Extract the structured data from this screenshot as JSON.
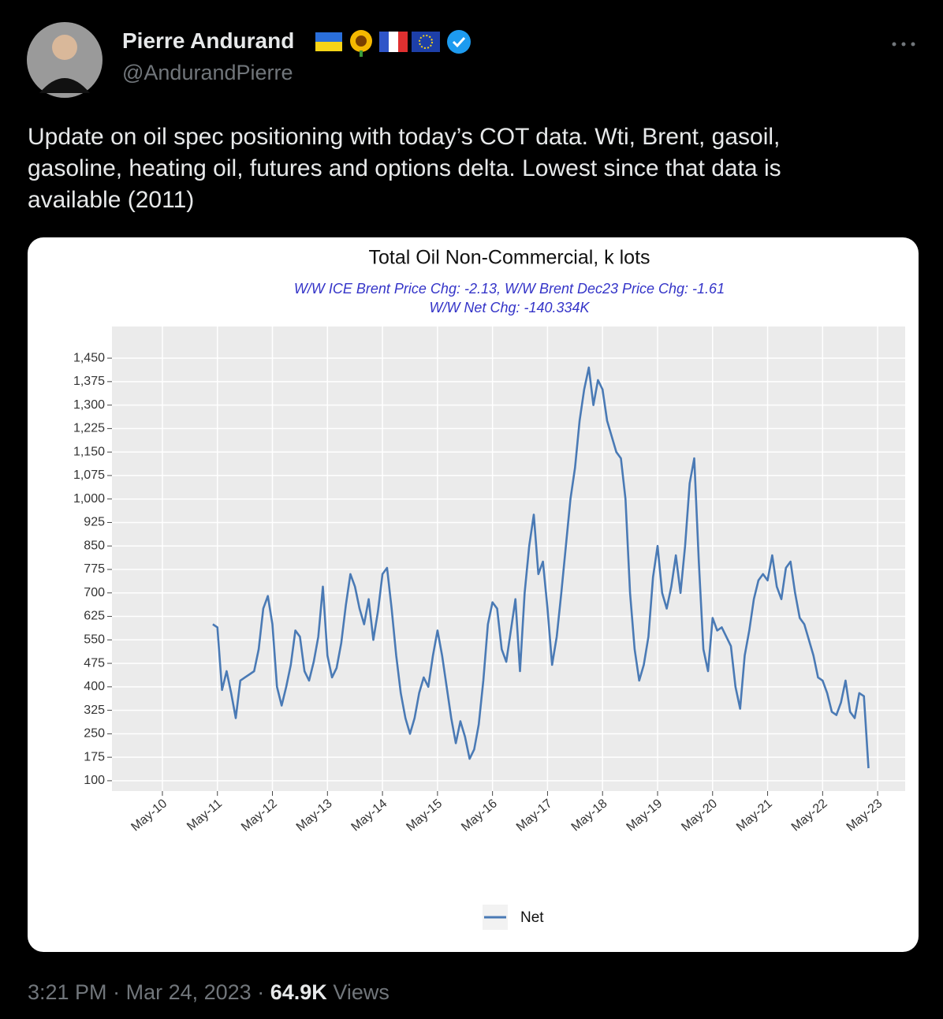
{
  "tweet": {
    "name": "Pierre Andurand",
    "handle": "@AndurandPierre",
    "text_lines": [
      "Update on oil spec positioning with today’s COT data. Wti, Brent, gasoil,",
      "gasoline, heating oil, futures and options delta. Lowest since that data is",
      "available (2011)"
    ],
    "time": "3:21 PM",
    "separator": "·",
    "date": "Mar 24, 2023",
    "views": "64.9K",
    "views_label": "Views"
  },
  "chart_data": {
    "type": "line",
    "title": "Total Oil Non-Commercial, k lots",
    "subtitle": [
      "W/W ICE Brent Price Chg: -2.13, W/W Brent Dec23 Price Chg: -1.61",
      "W/W Net Chg: -140.334K"
    ],
    "x": [
      "2011-04",
      "2011-05",
      "2011-06",
      "2011-07",
      "2011-08",
      "2011-09",
      "2011-10",
      "2011-11",
      "2011-12",
      "2012-01",
      "2012-02",
      "2012-03",
      "2012-04",
      "2012-05",
      "2012-06",
      "2012-07",
      "2012-08",
      "2012-09",
      "2012-10",
      "2012-11",
      "2012-12",
      "2013-01",
      "2013-02",
      "2013-03",
      "2013-04",
      "2013-05",
      "2013-06",
      "2013-07",
      "2013-08",
      "2013-09",
      "2013-10",
      "2013-11",
      "2013-12",
      "2014-01",
      "2014-02",
      "2014-03",
      "2014-04",
      "2014-05",
      "2014-06",
      "2014-07",
      "2014-08",
      "2014-09",
      "2014-10",
      "2014-11",
      "2014-12",
      "2015-01",
      "2015-02",
      "2015-03",
      "2015-04",
      "2015-05",
      "2015-06",
      "2015-07",
      "2015-08",
      "2015-09",
      "2015-10",
      "2015-11",
      "2015-12",
      "2016-01",
      "2016-02",
      "2016-03",
      "2016-04",
      "2016-05",
      "2016-06",
      "2016-07",
      "2016-08",
      "2016-09",
      "2016-10",
      "2016-11",
      "2016-12",
      "2017-01",
      "2017-02",
      "2017-03",
      "2017-04",
      "2017-05",
      "2017-06",
      "2017-07",
      "2017-08",
      "2017-09",
      "2017-10",
      "2017-11",
      "2017-12",
      "2018-01",
      "2018-02",
      "2018-03",
      "2018-04",
      "2018-05",
      "2018-06",
      "2018-07",
      "2018-08",
      "2018-09",
      "2018-10",
      "2018-11",
      "2018-12",
      "2019-01",
      "2019-02",
      "2019-03",
      "2019-04",
      "2019-05",
      "2019-06",
      "2019-07",
      "2019-08",
      "2019-09",
      "2019-10",
      "2019-11",
      "2019-12",
      "2020-01",
      "2020-02",
      "2020-03",
      "2020-04",
      "2020-05",
      "2020-06",
      "2020-07",
      "2020-08",
      "2020-09",
      "2020-10",
      "2020-11",
      "2020-12",
      "2021-01",
      "2021-02",
      "2021-03",
      "2021-04",
      "2021-05",
      "2021-06",
      "2021-07",
      "2021-08",
      "2021-09",
      "2021-10",
      "2021-11",
      "2021-12",
      "2022-01",
      "2022-02",
      "2022-03",
      "2022-04",
      "2022-05",
      "2022-06",
      "2022-07",
      "2022-08",
      "2022-09",
      "2022-10",
      "2022-11",
      "2022-12",
      "2023-01",
      "2023-02",
      "2023-03"
    ],
    "series": [
      {
        "name": "Net",
        "color": "#4a7ab5",
        "values": [
          600,
          590,
          390,
          450,
          380,
          300,
          420,
          430,
          440,
          450,
          520,
          650,
          690,
          600,
          400,
          340,
          400,
          470,
          580,
          560,
          450,
          420,
          480,
          560,
          720,
          500,
          430,
          460,
          540,
          660,
          760,
          720,
          650,
          600,
          680,
          550,
          640,
          760,
          780,
          650,
          500,
          380,
          300,
          250,
          300,
          380,
          430,
          400,
          500,
          580,
          500,
          400,
          300,
          220,
          290,
          240,
          170,
          200,
          280,
          420,
          600,
          670,
          650,
          520,
          480,
          580,
          680,
          450,
          700,
          850,
          950,
          760,
          800,
          650,
          470,
          560,
          700,
          850,
          1000,
          1100,
          1250,
          1350,
          1420,
          1300,
          1380,
          1350,
          1250,
          1200,
          1150,
          1130,
          1000,
          700,
          520,
          420,
          470,
          560,
          750,
          850,
          700,
          650,
          720,
          820,
          700,
          850,
          1050,
          1130,
          800,
          520,
          450,
          620,
          580,
          590,
          560,
          530,
          400,
          330,
          500,
          580,
          680,
          740,
          760,
          740,
          820,
          720,
          680,
          780,
          800,
          700,
          620,
          600,
          550,
          500,
          430,
          420,
          380,
          320,
          310,
          350,
          420,
          320,
          300,
          380,
          370,
          140
        ]
      }
    ],
    "xlim": [
      "2009-06",
      "2023-11"
    ],
    "xticks": [
      {
        "value": "2010-05",
        "label": "May-10"
      },
      {
        "value": "2011-05",
        "label": "May-11"
      },
      {
        "value": "2012-05",
        "label": "May-12"
      },
      {
        "value": "2013-05",
        "label": "May-13"
      },
      {
        "value": "2014-05",
        "label": "May-14"
      },
      {
        "value": "2015-05",
        "label": "May-15"
      },
      {
        "value": "2016-05",
        "label": "May-16"
      },
      {
        "value": "2017-05",
        "label": "May-17"
      },
      {
        "value": "2018-05",
        "label": "May-18"
      },
      {
        "value": "2019-05",
        "label": "May-19"
      },
      {
        "value": "2020-05",
        "label": "May-20"
      },
      {
        "value": "2021-05",
        "label": "May-21"
      },
      {
        "value": "2022-05",
        "label": "May-22"
      },
      {
        "value": "2023-05",
        "label": "May-23"
      }
    ],
    "ylim": [
      67,
      1551
    ],
    "yticks": [
      100,
      175,
      250,
      325,
      400,
      475,
      550,
      625,
      700,
      775,
      850,
      925,
      {
        "value": 1000,
        "label": "1,000"
      },
      {
        "value": 1075,
        "label": "1,075"
      },
      {
        "value": 1150,
        "label": "1,150"
      },
      {
        "value": 1225,
        "label": "1,225"
      },
      {
        "value": 1300,
        "label": "1,300"
      },
      {
        "value": 1375,
        "label": "1,375"
      },
      {
        "value": 1450,
        "label": "1,450"
      }
    ],
    "grid": true,
    "legend": "bottom"
  }
}
